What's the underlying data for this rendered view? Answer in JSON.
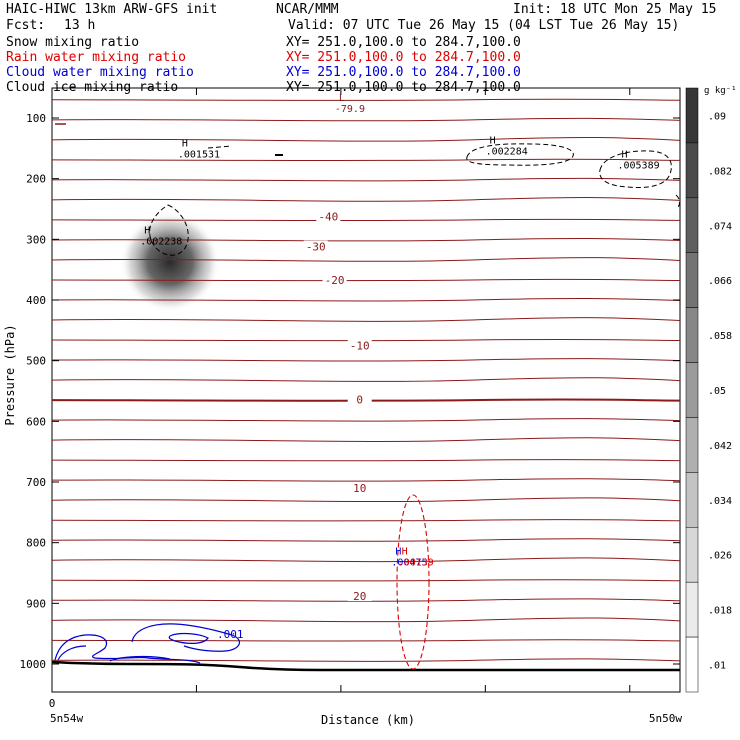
{
  "header": {
    "model": "HAIC-HIWC 13km ARW-GFS init",
    "org": "NCAR/MMM",
    "init": "Init: 18 UTC Mon 25 May 15",
    "fcst_label": "Fcst:",
    "fcst_value": "13 h",
    "valid": "Valid: 07 UTC Tue 26 May 15 (04 LST Tue 26 May 15)"
  },
  "fields": [
    {
      "name": "Snow mixing ratio",
      "xy": "XY= 251.0,100.0 to 284.7,100.0",
      "color": "#000000"
    },
    {
      "name": "Rain water mixing ratio",
      "xy": "XY= 251.0,100.0 to 284.7,100.0",
      "color": "#e00000"
    },
    {
      "name": "Cloud water mixing ratio",
      "xy": "XY= 251.0,100.0 to 284.7,100.0",
      "color": "#0000d0"
    },
    {
      "name": "Cloud ice mixing ratio",
      "xy": "XY= 251.0,100.0 to 284.7,100.0",
      "color": "#000000"
    }
  ],
  "chart_data": {
    "type": "contour",
    "ylabel": "Pressure (hPa)",
    "xlabel": "Distance (km)",
    "y_ticks": [
      100,
      200,
      300,
      400,
      500,
      600,
      700,
      800,
      900,
      1000
    ],
    "x_tick_labels": [
      "0",
      "5n54w",
      "5n50w"
    ],
    "colorbar": {
      "unit": "g kg⁻¹",
      "levels": [
        0.01,
        0.018,
        0.026,
        0.034,
        0.042,
        0.05,
        0.058,
        0.066,
        0.074,
        0.082,
        0.09
      ],
      "labels": [
        ".01",
        ".018",
        ".026",
        ".034",
        ".042",
        ".05",
        ".058",
        ".066",
        ".074",
        ".082",
        ".09"
      ]
    },
    "temperature_labels": [
      {
        "text": "-40",
        "p": 262,
        "dist_frac": 0.44
      },
      {
        "text": "-30",
        "p": 312,
        "dist_frac": 0.42
      },
      {
        "text": "-20",
        "p": 367,
        "dist_frac": 0.45
      },
      {
        "text": "-10",
        "p": 475,
        "dist_frac": 0.49
      },
      {
        "text": "0",
        "p": 564,
        "dist_frac": 0.49
      },
      {
        "text": "10",
        "p": 710,
        "dist_frac": 0.49
      },
      {
        "text": "20",
        "p": 888,
        "dist_frac": 0.49
      }
    ],
    "extrema": [
      {
        "type": "L",
        "value": "-79.9",
        "p": 82,
        "dist_frac": 0.46,
        "color": "#8b1a1a"
      },
      {
        "type": "H",
        "value": ".001531",
        "p": 157,
        "dist_frac": 0.21,
        "color": "#000000"
      },
      {
        "type": "H",
        "value": ".002284",
        "p": 152,
        "dist_frac": 0.7,
        "color": "#000000"
      },
      {
        "type": "H",
        "value": ".005389",
        "p": 175,
        "dist_frac": 0.91,
        "color": "#000000"
      },
      {
        "type": "H",
        "value": ".002238",
        "p": 300,
        "dist_frac": 0.15,
        "color": "#000000"
      },
      {
        "type": "H",
        "value": ".00475",
        "p": 829,
        "dist_frac": 0.55,
        "color": "#0000d0"
      },
      {
        "type": "H",
        "value": ".00139",
        "p": 829,
        "dist_frac": 0.56,
        "color": "#e00000"
      }
    ],
    "cloud_water_contour_label": ".001"
  }
}
